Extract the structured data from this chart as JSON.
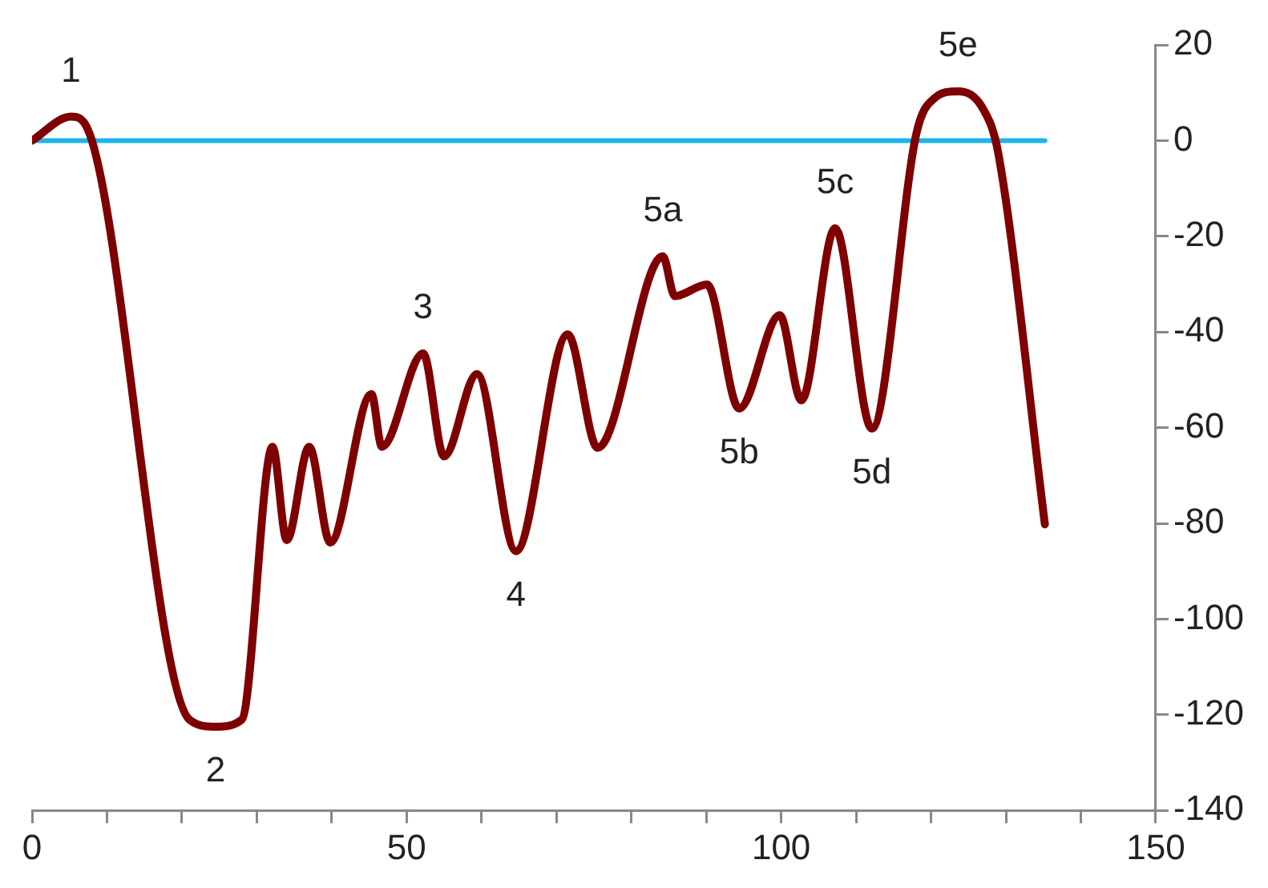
{
  "chart_data": {
    "type": "line",
    "series": [
      {
        "color": "#7f0000",
        "x": [
          0,
          5.2,
          7.4,
          21,
          24.5,
          28,
          32.1,
          34,
          37,
          39.8,
          45.3,
          46.7,
          52.2,
          55,
          59.4,
          64.6,
          71.5,
          75.5,
          84.2,
          85.8,
          90.1,
          94.4,
          99.8,
          102.7,
          107.2,
          112.1,
          118.1,
          120.5,
          123.6,
          127,
          129,
          135.2
        ],
        "values": [
          0,
          5,
          2.5,
          -121,
          -122.5,
          -121,
          -64,
          -83.5,
          -64,
          -84,
          -53,
          -64,
          -44.5,
          -66,
          -48.8,
          -85.8,
          -40.5,
          -64.2,
          -24.2,
          -32.5,
          -30.1,
          -56,
          -36.5,
          -54.3,
          -18.3,
          -60.2,
          1.8,
          8.9,
          10.3,
          6.5,
          -2.8,
          -80.2
        ]
      },
      {
        "color": "#1fb4e8",
        "x": [
          0,
          135.2
        ],
        "values": [
          0,
          0
        ]
      }
    ],
    "xlim": [
      0,
      150
    ],
    "xticks": [
      0,
      {
        "value": 10,
        "label": null
      },
      {
        "value": 20,
        "label": null
      },
      {
        "value": 30,
        "label": null
      },
      {
        "value": 40,
        "label": null
      },
      50,
      {
        "value": 60,
        "label": null
      },
      {
        "value": 70,
        "label": null
      },
      {
        "value": 80,
        "label": null
      },
      {
        "value": 90,
        "label": null
      },
      100,
      {
        "value": 110,
        "label": null
      },
      {
        "value": 120,
        "label": null
      },
      {
        "value": 130,
        "label": null
      },
      {
        "value": 140,
        "label": null
      },
      150
    ],
    "ylim": [
      -140,
      20
    ],
    "yticks": [
      -140,
      -120,
      -100,
      -80,
      -60,
      -40,
      -20,
      0,
      20
    ],
    "grid": false,
    "legend": false,
    "annotations": [
      {
        "text": "1",
        "x": 5.2,
        "y": 5
      },
      {
        "text": "2",
        "x": 24.5,
        "y": -122.5
      },
      {
        "text": "3",
        "x": 52.2,
        "y": -44.5
      },
      {
        "text": "4",
        "x": 64.6,
        "y": -85.8
      },
      {
        "text": "5a",
        "x": 84.2,
        "y": -24.2
      },
      {
        "text": "5b",
        "x": 94.4,
        "y": -56
      },
      {
        "text": "5c",
        "x": 107.2,
        "y": -18.3
      },
      {
        "text": "5d",
        "x": 112.1,
        "y": -60.2
      },
      {
        "text": "5e",
        "x": 123.6,
        "y": 10.3
      }
    ]
  }
}
